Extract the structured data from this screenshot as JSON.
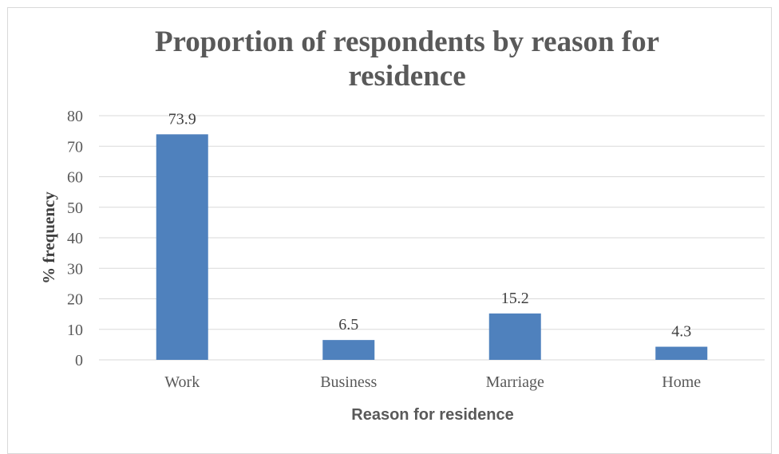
{
  "chart_data": {
    "type": "bar",
    "title_lines": [
      "Proportion of respondents by reason for",
      "residence"
    ],
    "categories": [
      "Work",
      "Business",
      "Marriage",
      "Home"
    ],
    "values": [
      73.9,
      6.5,
      15.2,
      4.3
    ],
    "data_labels": [
      "73.9",
      "6.5",
      "15.2",
      "4.3"
    ],
    "xlabel": "Reason for residence",
    "ylabel": "% frequency",
    "ylim": [
      0,
      80
    ],
    "yticks": [
      "0",
      "10",
      "20",
      "30",
      "40",
      "50",
      "60",
      "70",
      "80"
    ],
    "grid": true,
    "legend": "none",
    "bar_color": "#4f81bd",
    "grid_color": "#d9d9d9"
  }
}
